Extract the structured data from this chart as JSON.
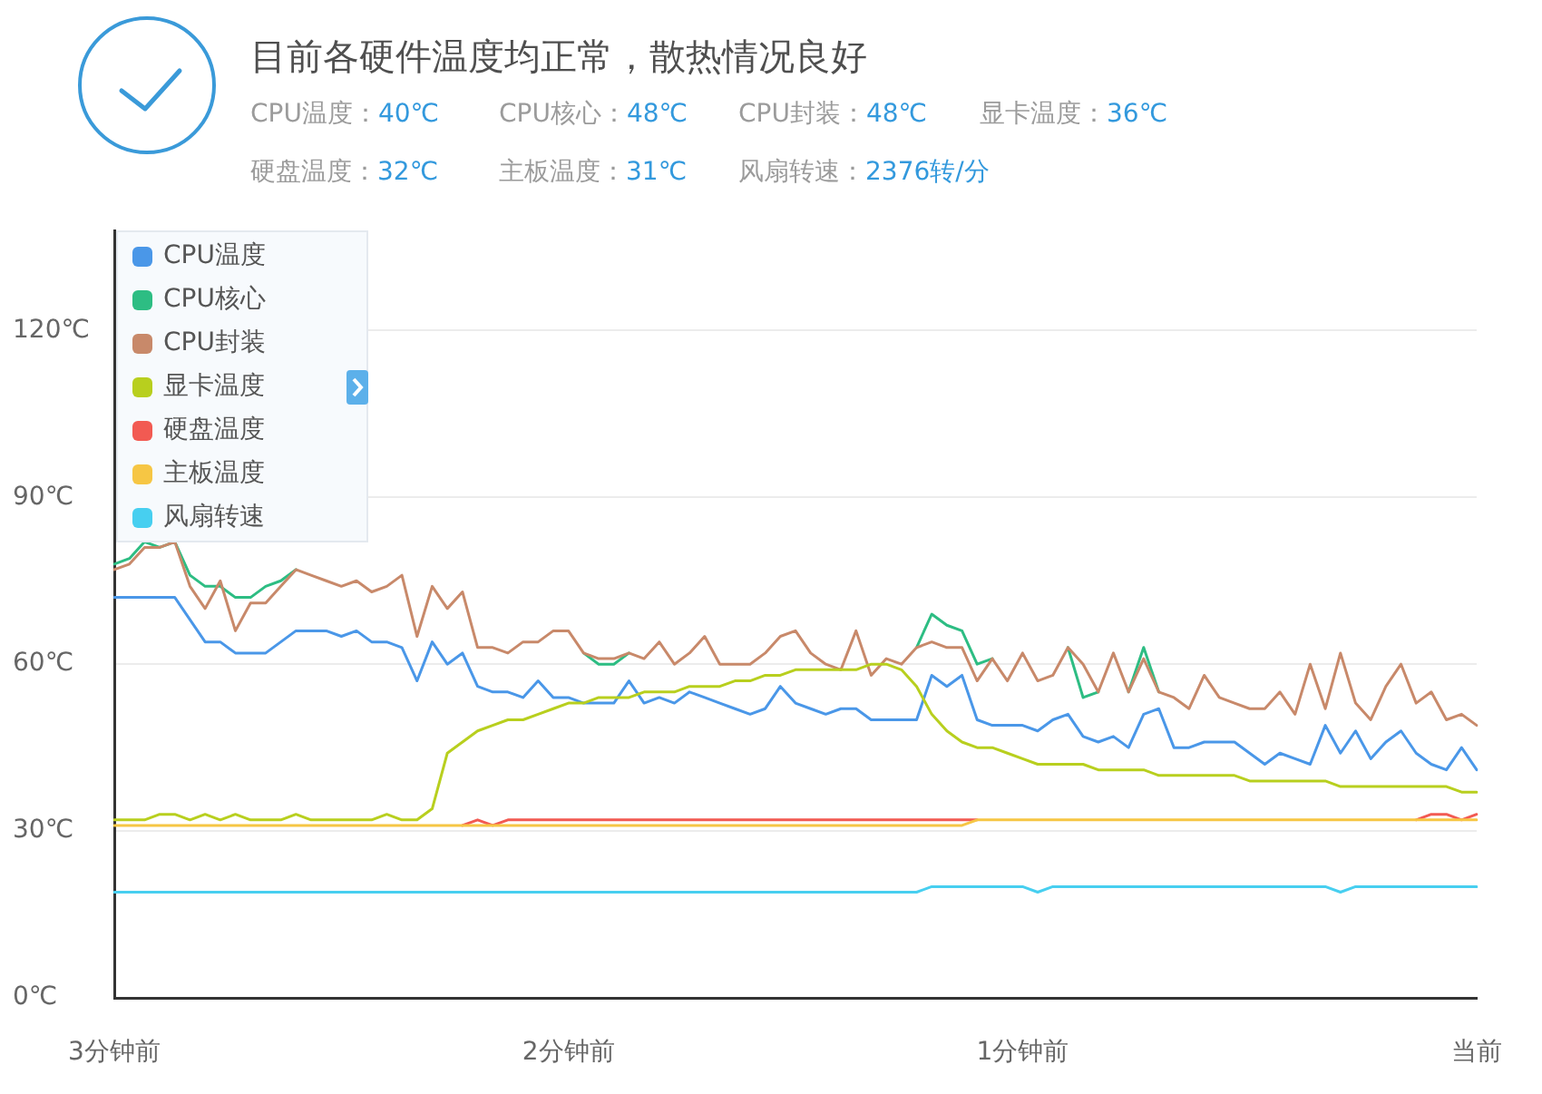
{
  "chart_data": {
    "type": "line",
    "title": "目前各硬件温度均正常，散热情况良好",
    "annotations": [
      "CPU温度：40℃",
      "CPU核心：48℃",
      "CPU封装：48℃",
      "显卡温度：36℃",
      "硬盘温度：32℃",
      "主板温度：31℃",
      "风扇转速：2376转/分"
    ],
    "categories": [
      "3分钟前",
      null,
      null,
      null,
      null,
      null,
      null,
      null,
      null,
      null,
      null,
      null,
      null,
      null,
      null,
      null,
      null,
      null,
      null,
      null,
      null,
      null,
      null,
      null,
      null,
      null,
      null,
      null,
      null,
      null,
      "2分钟前",
      null,
      null,
      null,
      null,
      null,
      null,
      null,
      null,
      null,
      null,
      null,
      null,
      null,
      null,
      null,
      null,
      null,
      null,
      null,
      null,
      null,
      null,
      null,
      null,
      null,
      null,
      null,
      null,
      null,
      "1分钟前",
      null,
      null,
      null,
      null,
      null,
      null,
      null,
      null,
      null,
      null,
      null,
      null,
      null,
      null,
      null,
      null,
      null,
      null,
      null,
      null,
      null,
      null,
      null,
      null,
      null,
      null,
      null,
      null,
      null,
      "当前"
    ],
    "ylim": [
      0,
      138
    ],
    "yticks": [
      {
        "value": 0,
        "label": "0℃"
      },
      {
        "value": 30,
        "label": "30℃"
      },
      {
        "value": 60,
        "label": "60℃"
      },
      {
        "value": 90,
        "label": "90℃"
      },
      {
        "value": 120,
        "label": "120℃"
      }
    ],
    "grid": "y",
    "legend": "top left",
    "marker": "none",
    "line_style": "solid",
    "series": [
      {
        "name": "CPU温度",
        "color": "#4a97e8",
        "values": [
          72,
          72,
          72,
          72,
          72,
          68,
          64,
          64,
          62,
          62,
          62,
          64,
          66,
          66,
          66,
          65,
          66,
          64,
          64,
          63,
          57,
          64,
          60,
          62,
          56,
          55,
          55,
          54,
          57,
          54,
          54,
          53,
          53,
          53,
          57,
          53,
          54,
          53,
          55,
          54,
          53,
          52,
          51,
          52,
          56,
          53,
          52,
          51,
          52,
          52,
          50,
          50,
          50,
          50,
          58,
          56,
          58,
          50,
          49,
          49,
          49,
          48,
          50,
          51,
          47,
          46,
          47,
          45,
          51,
          52,
          45,
          45,
          46,
          46,
          46,
          44,
          42,
          44,
          43,
          42,
          49,
          44,
          48,
          43,
          46,
          48,
          44,
          42,
          41,
          45,
          41
        ]
      },
      {
        "name": "CPU核心",
        "color": "#2dbd83",
        "values": [
          78,
          79,
          82,
          81,
          82,
          76,
          74,
          74,
          72,
          72,
          74,
          75,
          77,
          null,
          null,
          null,
          null,
          null,
          null,
          null,
          null,
          null,
          null,
          null,
          null,
          null,
          null,
          null,
          null,
          null,
          null,
          62,
          60,
          60,
          62,
          null,
          null,
          null,
          null,
          null,
          null,
          null,
          null,
          null,
          null,
          null,
          null,
          null,
          null,
          null,
          null,
          null,
          null,
          63,
          69,
          67,
          66,
          60,
          61,
          null,
          null,
          null,
          null,
          63,
          54,
          55,
          null,
          55,
          63,
          55,
          null,
          null,
          null,
          null,
          null,
          null,
          null,
          null,
          null,
          null,
          null,
          null,
          null,
          null,
          null,
          null,
          null,
          null,
          null,
          null,
          null
        ]
      },
      {
        "name": "CPU封装",
        "color": "#c8896a",
        "values": [
          77,
          78,
          81,
          81,
          82,
          74,
          70,
          75,
          66,
          71,
          71,
          74,
          77,
          76,
          75,
          74,
          75,
          73,
          74,
          76,
          65,
          74,
          70,
          73,
          63,
          63,
          62,
          64,
          64,
          66,
          66,
          62,
          61,
          61,
          62,
          61,
          64,
          60,
          62,
          65,
          60,
          60,
          60,
          62,
          65,
          66,
          62,
          60,
          59,
          66,
          58,
          61,
          60,
          63,
          64,
          63,
          63,
          57,
          61,
          57,
          62,
          57,
          58,
          63,
          60,
          55,
          62,
          55,
          61,
          55,
          54,
          52,
          58,
          54,
          53,
          52,
          52,
          55,
          51,
          60,
          52,
          62,
          53,
          50,
          56,
          60,
          53,
          55,
          50,
          51,
          49
        ]
      },
      {
        "name": "显卡温度",
        "color": "#b8cf1e",
        "values": [
          32,
          32,
          32,
          33,
          33,
          32,
          33,
          32,
          33,
          32,
          32,
          32,
          33,
          32,
          32,
          32,
          32,
          32,
          33,
          32,
          32,
          34,
          44,
          46,
          48,
          49,
          50,
          50,
          51,
          52,
          53,
          53,
          54,
          54,
          54,
          55,
          55,
          55,
          56,
          56,
          56,
          57,
          57,
          58,
          58,
          59,
          59,
          59,
          59,
          59,
          60,
          60,
          59,
          56,
          51,
          48,
          46,
          45,
          45,
          44,
          43,
          42,
          42,
          42,
          42,
          41,
          41,
          41,
          41,
          40,
          40,
          40,
          40,
          40,
          40,
          39,
          39,
          39,
          39,
          39,
          39,
          38,
          38,
          38,
          38,
          38,
          38,
          38,
          38,
          37,
          37
        ]
      },
      {
        "name": "硬盘温度",
        "color": "#f25a52",
        "values": [
          null,
          null,
          null,
          null,
          null,
          null,
          null,
          null,
          null,
          null,
          null,
          null,
          null,
          null,
          null,
          null,
          null,
          null,
          null,
          null,
          null,
          null,
          null,
          31,
          32,
          31,
          32,
          32,
          32,
          32,
          32,
          32,
          32,
          32,
          32,
          32,
          32,
          32,
          32,
          32,
          32,
          32,
          32,
          32,
          32,
          32,
          32,
          32,
          32,
          32,
          32,
          32,
          32,
          32,
          32,
          32,
          32,
          32,
          null,
          null,
          null,
          null,
          null,
          null,
          null,
          null,
          null,
          null,
          null,
          null,
          null,
          null,
          null,
          null,
          null,
          null,
          null,
          null,
          null,
          null,
          null,
          null,
          null,
          null,
          null,
          null,
          32,
          33,
          33,
          32,
          33
        ]
      },
      {
        "name": "主板温度",
        "color": "#f6c644",
        "values": [
          31,
          31,
          31,
          31,
          31,
          31,
          31,
          31,
          31,
          31,
          31,
          31,
          31,
          31,
          31,
          31,
          31,
          31,
          31,
          31,
          31,
          31,
          31,
          31,
          31,
          31,
          31,
          31,
          31,
          31,
          31,
          31,
          31,
          31,
          31,
          31,
          31,
          31,
          31,
          31,
          31,
          31,
          31,
          31,
          31,
          31,
          31,
          31,
          31,
          31,
          31,
          31,
          31,
          31,
          31,
          31,
          31,
          32,
          32,
          32,
          32,
          32,
          32,
          32,
          32,
          32,
          32,
          32,
          32,
          32,
          32,
          32,
          32,
          32,
          32,
          32,
          32,
          32,
          32,
          32,
          32,
          32,
          32,
          32,
          32,
          32,
          32,
          32,
          32,
          32,
          32
        ]
      },
      {
        "name": "风扇转速",
        "color": "#47cff0",
        "values": [
          19,
          19,
          19,
          19,
          19,
          19,
          19,
          19,
          19,
          19,
          19,
          19,
          19,
          19,
          19,
          19,
          19,
          19,
          19,
          19,
          19,
          19,
          19,
          19,
          19,
          19,
          19,
          19,
          19,
          19,
          19,
          19,
          19,
          19,
          19,
          19,
          19,
          19,
          19,
          19,
          19,
          19,
          19,
          19,
          19,
          19,
          19,
          19,
          19,
          19,
          19,
          19,
          19,
          19,
          20,
          20,
          20,
          20,
          20,
          20,
          20,
          19,
          20,
          20,
          20,
          20,
          20,
          20,
          20,
          20,
          20,
          20,
          20,
          20,
          20,
          20,
          20,
          20,
          20,
          20,
          20,
          19,
          20,
          20,
          20,
          20,
          20,
          20,
          20,
          20,
          20
        ]
      }
    ]
  }
}
